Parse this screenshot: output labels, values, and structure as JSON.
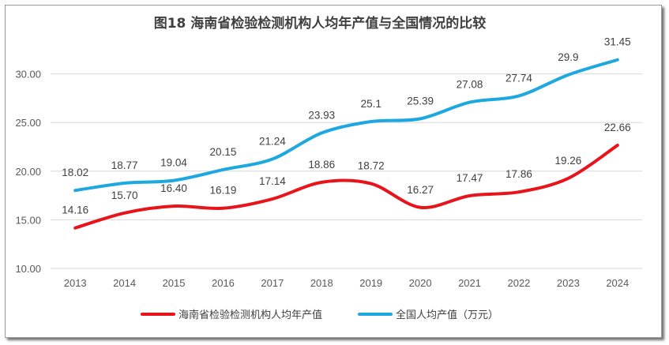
{
  "chart_data": {
    "type": "line",
    "title": "图18  海南省检验检测机构人均年产值与全国情况的比较",
    "categories": [
      "2013",
      "2014",
      "2015",
      "2016",
      "2017",
      "2018",
      "2019",
      "2020",
      "2021",
      "2022",
      "2023",
      "2024"
    ],
    "ylim": [
      10,
      35
    ],
    "yticks": [
      "10.00",
      "15.00",
      "20.00",
      "25.00",
      "30.00"
    ],
    "grid": true,
    "legend_position": "bottom",
    "series": [
      {
        "name": "海南省检验检测机构人均年产值",
        "color": "#E8141B",
        "values": [
          14.16,
          15.7,
          16.4,
          16.19,
          17.14,
          18.86,
          18.72,
          16.27,
          17.47,
          17.86,
          19.26,
          22.66
        ],
        "labels": [
          "14.16",
          "15.70",
          "16.40",
          "16.19",
          "17.14",
          "18.86",
          "18.72",
          "16.27",
          "17.47",
          "17.86",
          "19.26",
          "22.66"
        ]
      },
      {
        "name": "全国人均产值（万元）",
        "color": "#1EA8E0",
        "values": [
          18.02,
          18.77,
          19.04,
          20.15,
          21.24,
          23.93,
          25.1,
          25.39,
          27.08,
          27.74,
          29.9,
          31.45
        ],
        "labels": [
          "18.02",
          "18.77",
          "19.04",
          "20.15",
          "21.24",
          "23.93",
          "25.1",
          "25.39",
          "27.08",
          "27.74",
          "29.9",
          "31.45"
        ]
      }
    ]
  }
}
